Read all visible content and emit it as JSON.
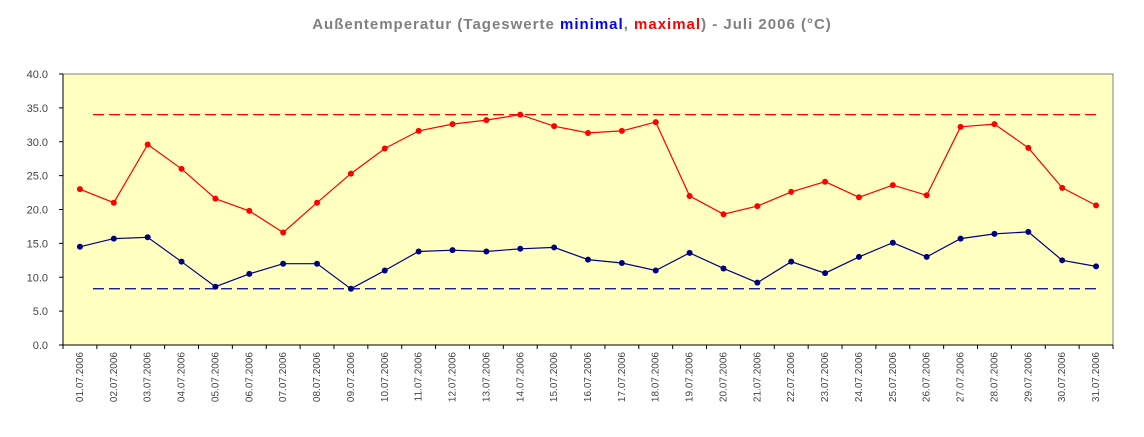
{
  "title": {
    "prefix": "Außentemperatur (Tageswerte ",
    "min_word": "minimal",
    "separator": ", ",
    "max_word": "maximal",
    "suffix": ") - Juli 2006 (°C)"
  },
  "colors": {
    "min": "#00007f",
    "max": "#ff0000",
    "plot_bg": "#ffffc0",
    "grid": "#000000"
  },
  "chart_data": {
    "type": "line",
    "categories": [
      "01.07.2006",
      "02.07.2006",
      "03.07.2006",
      "04.07.2006",
      "05.07.2006",
      "06.07.2006",
      "07.07.2006",
      "08.07.2006",
      "09.07.2006",
      "10.07.2006",
      "11.07.2006",
      "12.07.2006",
      "13.07.2006",
      "14.07.2006",
      "15.07.2006",
      "16.07.2006",
      "17.07.2006",
      "18.07.2006",
      "19.07.2006",
      "20.07.2006",
      "21.07.2006",
      "22.07.2006",
      "23.07.2006",
      "24.07.2006",
      "25.07.2006",
      "26.07.2006",
      "27.07.2006",
      "28.07.2006",
      "29.07.2006",
      "30.07.2006",
      "31.07.2006"
    ],
    "series": [
      {
        "key": "max",
        "values": [
          23.0,
          21.0,
          29.6,
          26.0,
          21.6,
          19.8,
          16.6,
          21.0,
          25.3,
          29.0,
          31.6,
          32.6,
          33.2,
          34.0,
          32.3,
          31.3,
          31.6,
          32.9,
          22.0,
          19.3,
          20.5,
          22.6,
          24.1,
          21.8,
          23.6,
          22.1,
          32.2,
          32.6,
          29.1,
          23.2,
          20.6
        ],
        "reference_line": 34.0
      },
      {
        "key": "min",
        "values": [
          14.5,
          15.7,
          15.9,
          12.3,
          8.6,
          10.5,
          12.0,
          12.0,
          8.3,
          11.0,
          13.8,
          14.0,
          13.8,
          14.2,
          14.4,
          12.6,
          12.1,
          11.0,
          13.6,
          11.3,
          9.2,
          12.3,
          10.6,
          13.0,
          15.1,
          13.0,
          15.7,
          16.4,
          16.7,
          12.5,
          11.6
        ],
        "reference_line": 8.3
      }
    ],
    "ylim": [
      0,
      40
    ],
    "ytick_step": 5,
    "ytick_labels": [
      "0.0",
      "5.0",
      "10.0",
      "15.0",
      "20.0",
      "25.0",
      "30.0",
      "35.0",
      "40.0"
    ],
    "grid": false,
    "legend": "none"
  }
}
